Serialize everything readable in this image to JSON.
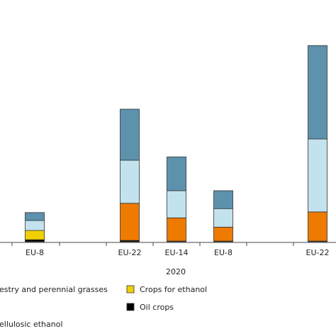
{
  "chart_data": {
    "type": "bar",
    "stacked": true,
    "categories": [
      "EU-8",
      "EU-22",
      "EU-14",
      "EU-8",
      "EU-22"
    ],
    "group_label": "2020",
    "series": [
      {
        "name": "Oil crops",
        "color": "#000000",
        "values": [
          0.3,
          0.2,
          0.1,
          0.1,
          0.1
        ]
      },
      {
        "name": "Crops for ethanol",
        "color": "#f0d000",
        "values": [
          1.4,
          0.0,
          0.0,
          0.0,
          0.0
        ]
      },
      {
        "color": "#ee7b00",
        "values": [
          0.0,
          5.6,
          3.5,
          2.1,
          4.4
        ]
      },
      {
        "color": "#c2e3ee",
        "values": [
          1.5,
          6.5,
          4.1,
          2.8,
          11.0
        ]
      },
      {
        "color": "#5c92ab",
        "values": [
          1.2,
          7.7,
          5.1,
          2.7,
          14.1
        ]
      }
    ],
    "legend": [
      {
        "label": "estry and perennial grasses",
        "color": "#c2e3ee"
      },
      {
        "label": "Crops for ethanol",
        "color": "#f0d000"
      },
      {
        "label": "Oil crops",
        "color": "#000000"
      },
      {
        "label": "ellulosic ethanol",
        "color": "#5c92ab"
      }
    ],
    "legend_placement": "bottom",
    "grid": false
  }
}
